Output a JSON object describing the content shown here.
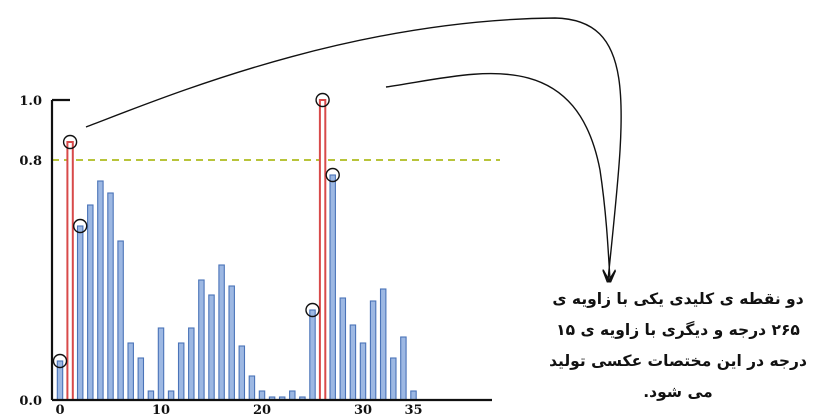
{
  "chart_data": {
    "type": "bar",
    "x": [
      0,
      1,
      2,
      3,
      4,
      5,
      6,
      7,
      8,
      9,
      10,
      11,
      12,
      13,
      14,
      15,
      16,
      17,
      18,
      19,
      20,
      21,
      22,
      23,
      24,
      25,
      26,
      27,
      28,
      29,
      30,
      31,
      32,
      33,
      34,
      35
    ],
    "values": [
      0.13,
      0.86,
      0.58,
      0.65,
      0.73,
      0.69,
      0.53,
      0.19,
      0.14,
      0.03,
      0.24,
      0.03,
      0.19,
      0.24,
      0.4,
      0.35,
      0.45,
      0.38,
      0.18,
      0.08,
      0.03,
      0.01,
      0.01,
      0.03,
      0.01,
      0.3,
      1.0,
      0.75,
      0.34,
      0.25,
      0.19,
      0.33,
      0.37,
      0.14,
      0.21,
      0.03
    ],
    "highlighted": [
      1,
      26
    ],
    "circled": [
      0,
      1,
      2,
      25,
      26,
      27
    ],
    "threshold": 0.8,
    "ylim": [
      0.0,
      1.0
    ],
    "xlim": [
      0,
      35
    ],
    "yticks": [
      "1.0",
      "0.8",
      "0.0"
    ],
    "xticks": [
      "0",
      "10",
      "20",
      "30",
      "35"
    ],
    "colors": {
      "bar_fill": "#9db8e3",
      "bar_stroke": "#4a73b8",
      "highlight_fill": "#ffffff",
      "highlight_stroke": "#d84a4a",
      "threshold": "#b8c43a",
      "axis": "#111111"
    }
  },
  "caption": {
    "lines": [
      "دو نقطه ی کلیدی یکی با زاویه ی",
      "۲۶۵ درجه و دیگری با زاویه ی ۱۵",
      "درجه در این مختصات عکسی تولید",
      "می شود."
    ]
  }
}
